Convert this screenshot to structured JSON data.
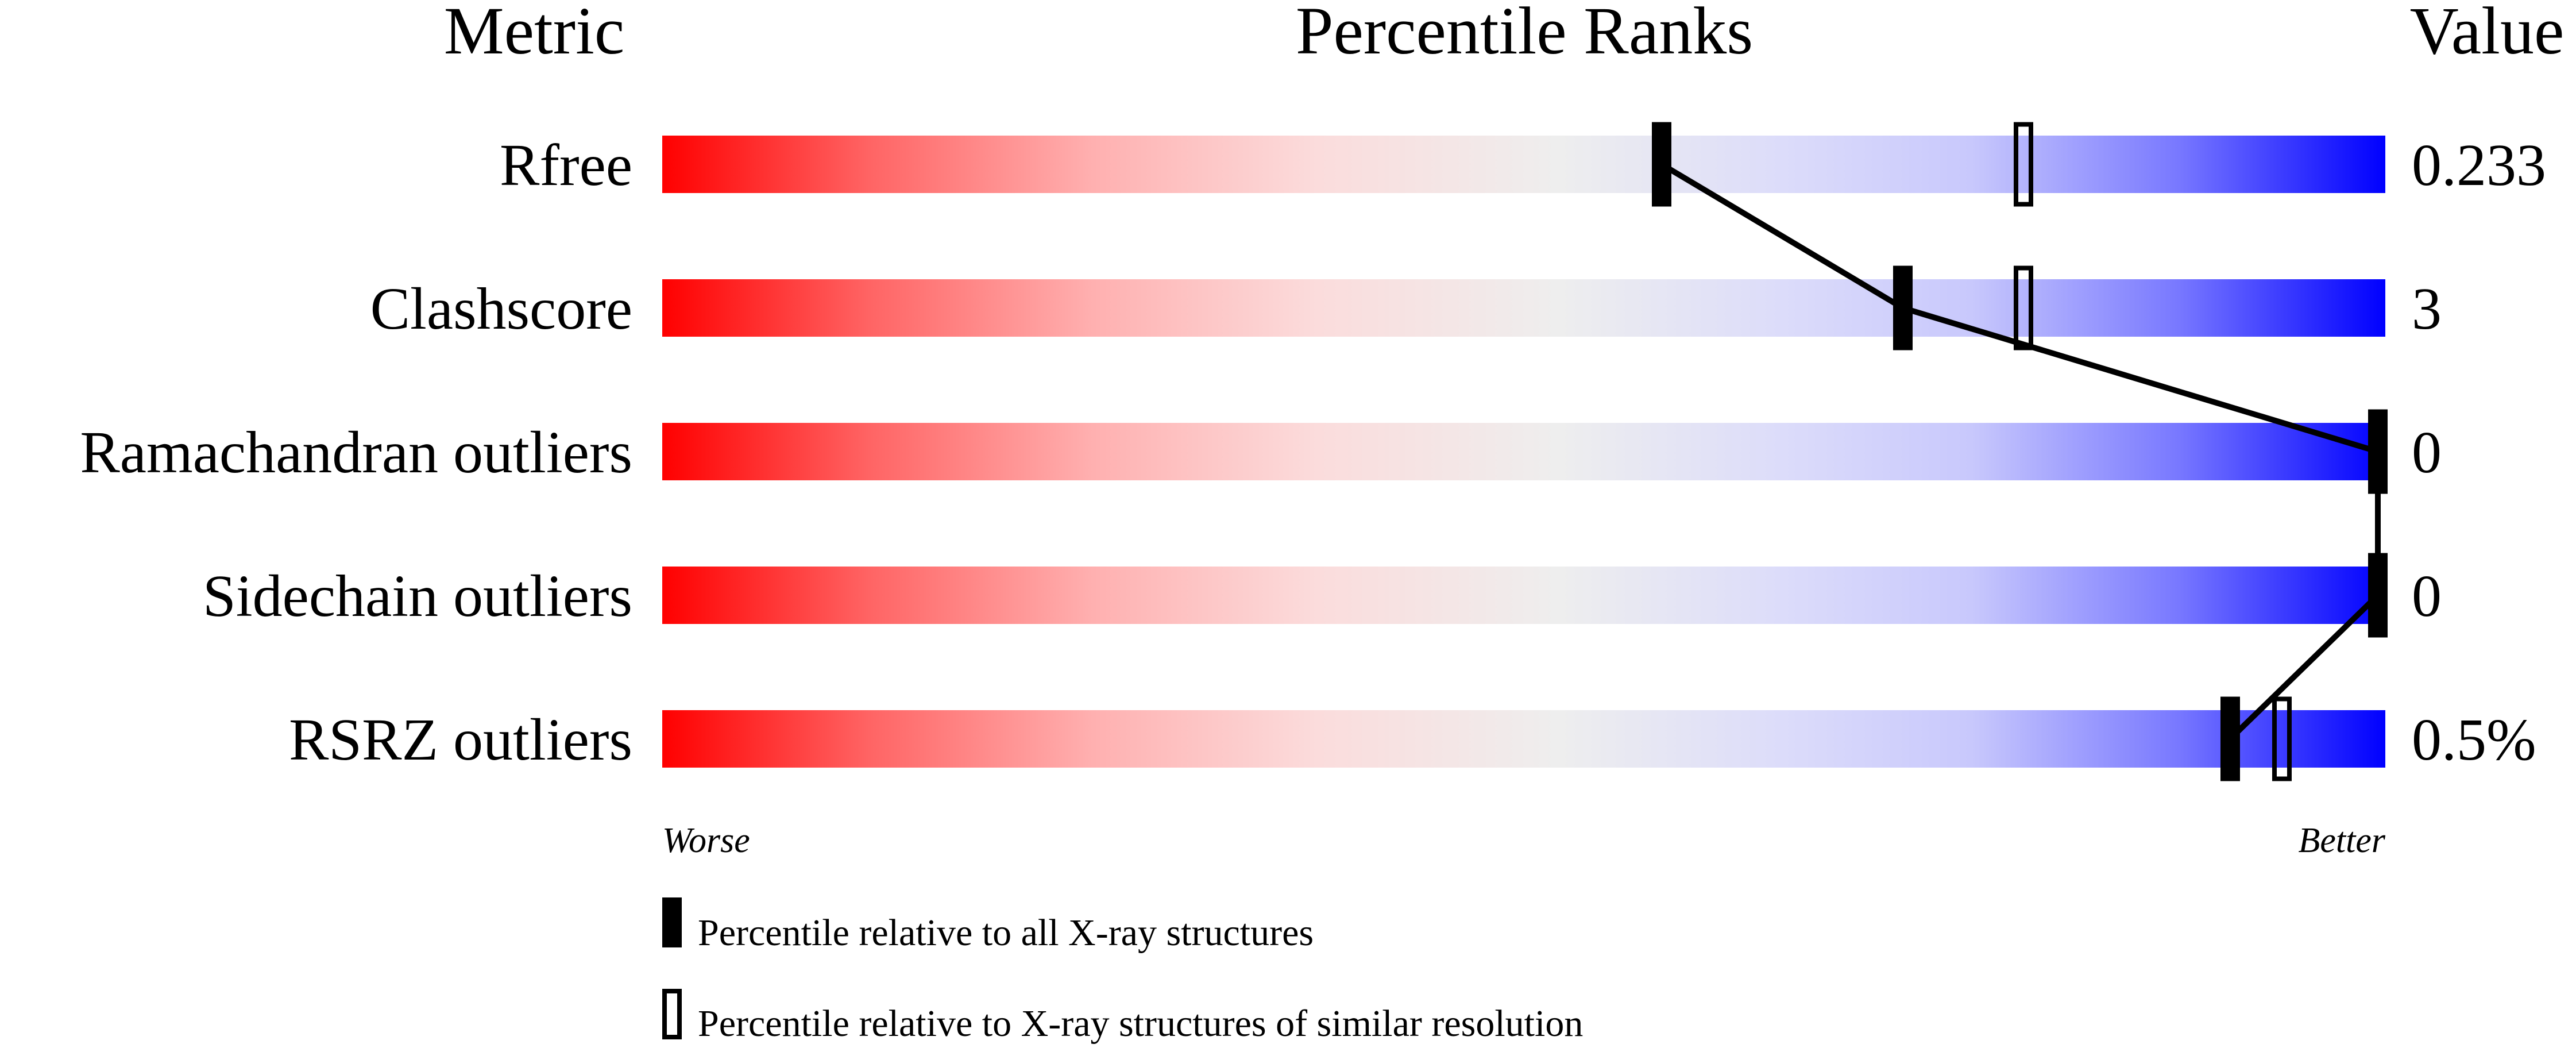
{
  "chart_data": {
    "type": "bar",
    "headers": {
      "metric": "Metric",
      "ranks": "Percentile Ranks",
      "value": "Value"
    },
    "xlim": [
      0,
      100
    ],
    "rows": [
      {
        "metric": "Rfree",
        "value": "0.233",
        "percentile_all": 58,
        "percentile_similar": 79
      },
      {
        "metric": "Clashscore",
        "value": "3",
        "percentile_all": 72,
        "percentile_similar": 79
      },
      {
        "metric": "Ramachandran outliers",
        "value": "0",
        "percentile_all": 100,
        "percentile_similar": null
      },
      {
        "metric": "Sidechain outliers",
        "value": "0",
        "percentile_all": 100,
        "percentile_similar": null
      },
      {
        "metric": "RSRZ outliers",
        "value": "0.5%",
        "percentile_all": 91,
        "percentile_similar": 94
      }
    ],
    "axis_labels": {
      "worse": "Worse",
      "better": "Better"
    },
    "legend": {
      "all": "Percentile relative to all X-ray structures",
      "similar": "Percentile relative to X-ray structures of similar resolution"
    },
    "colors": {
      "worse": "#ff0000",
      "middle": "#eeeeee",
      "better": "#0000ff",
      "marker": "#000000"
    }
  }
}
